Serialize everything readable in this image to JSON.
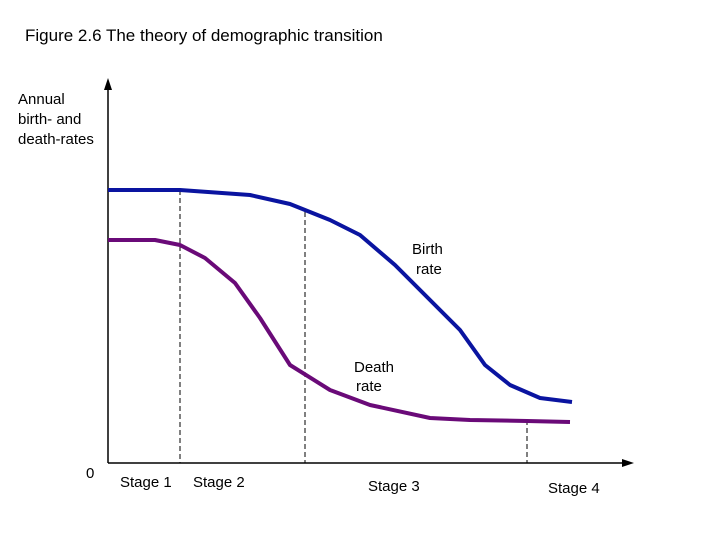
{
  "header": {
    "title": "Figure 2.6 The theory of demographic transition"
  },
  "axes": {
    "y_label": [
      "Annual",
      "birth- and",
      "death-rates"
    ],
    "origin": "0"
  },
  "stages": [
    "Stage 1",
    "Stage 2",
    "Stage 3",
    "Stage 4"
  ],
  "curves": {
    "birth": [
      "Birth",
      "rate"
    ],
    "death": [
      "Death",
      "rate"
    ]
  }
}
